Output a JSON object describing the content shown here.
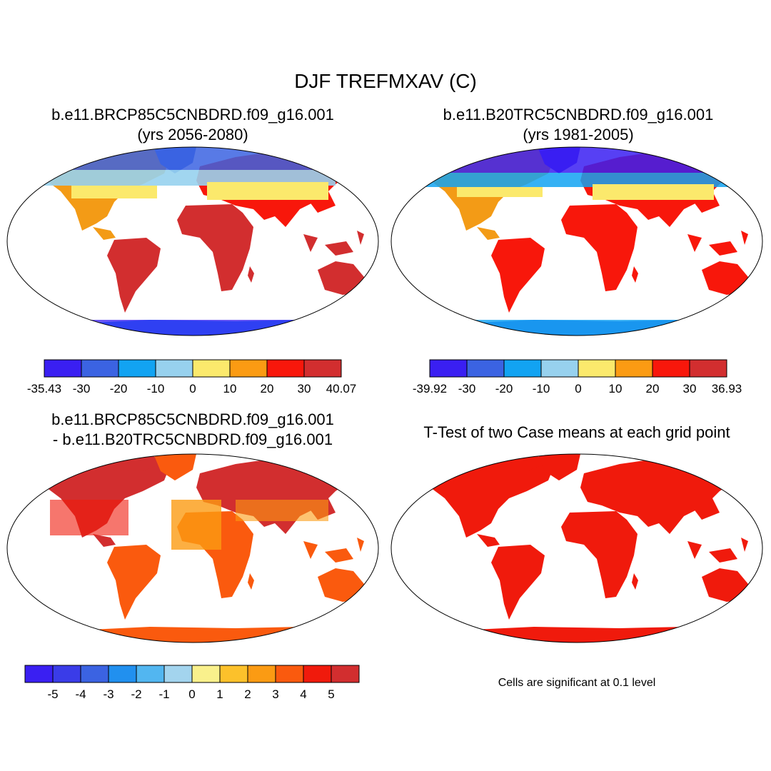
{
  "figure": {
    "title": "DJF TREFMXAV (C)"
  },
  "panels": [
    {
      "id": "case1",
      "title_line1": "b.e11.BRCP85C5CNBDRD.f09_g16.001",
      "title_line2": "(yrs 2056-2080)",
      "colorbar": {
        "colors": [
          "#3a1ff2",
          "#3b63e2",
          "#12a3f2",
          "#97d1ee",
          "#fbe96c",
          "#fb9b13",
          "#f8170b",
          "#d22e2f"
        ],
        "labels": [
          "-35.43",
          "-30",
          "-20",
          "-10",
          "0",
          "10",
          "20",
          "30",
          "40.07"
        ]
      }
    },
    {
      "id": "case2",
      "title_line1": "b.e11.B20TRC5CNBDRD.f09_g16.001",
      "title_line2": "(yrs 1981-2005)",
      "colorbar": {
        "colors": [
          "#3a1ff2",
          "#3b63e2",
          "#12a3f2",
          "#97d1ee",
          "#fbe96c",
          "#fb9b13",
          "#f8170b",
          "#d22e2f"
        ],
        "labels": [
          "-39.92",
          "-30",
          "-20",
          "-10",
          "0",
          "10",
          "20",
          "30",
          "36.93"
        ]
      }
    },
    {
      "id": "difference",
      "title_line1": "b.e11.BRCP85C5CNBDRD.f09_g16.001",
      "title_line2": "- b.e11.B20TRC5CNBDRD.f09_g16.001",
      "colorbar": {
        "colors": [
          "#3a1ff2",
          "#3a3ce8",
          "#3b63e2",
          "#2190ef",
          "#52b6f0",
          "#a3d4ee",
          "#f9f08c",
          "#fcc12b",
          "#fb9b13",
          "#fa5a0e",
          "#f01a0c",
          "#d22e2f"
        ],
        "labels": [
          "-5",
          "-4",
          "-3",
          "-2",
          "-1",
          "0",
          "1",
          "2",
          "3",
          "4",
          "5"
        ]
      }
    },
    {
      "id": "ttest",
      "title_line1": "T-Test of two Case means at each grid point",
      "note": "Cells are significant at 0.1 level"
    }
  ]
}
